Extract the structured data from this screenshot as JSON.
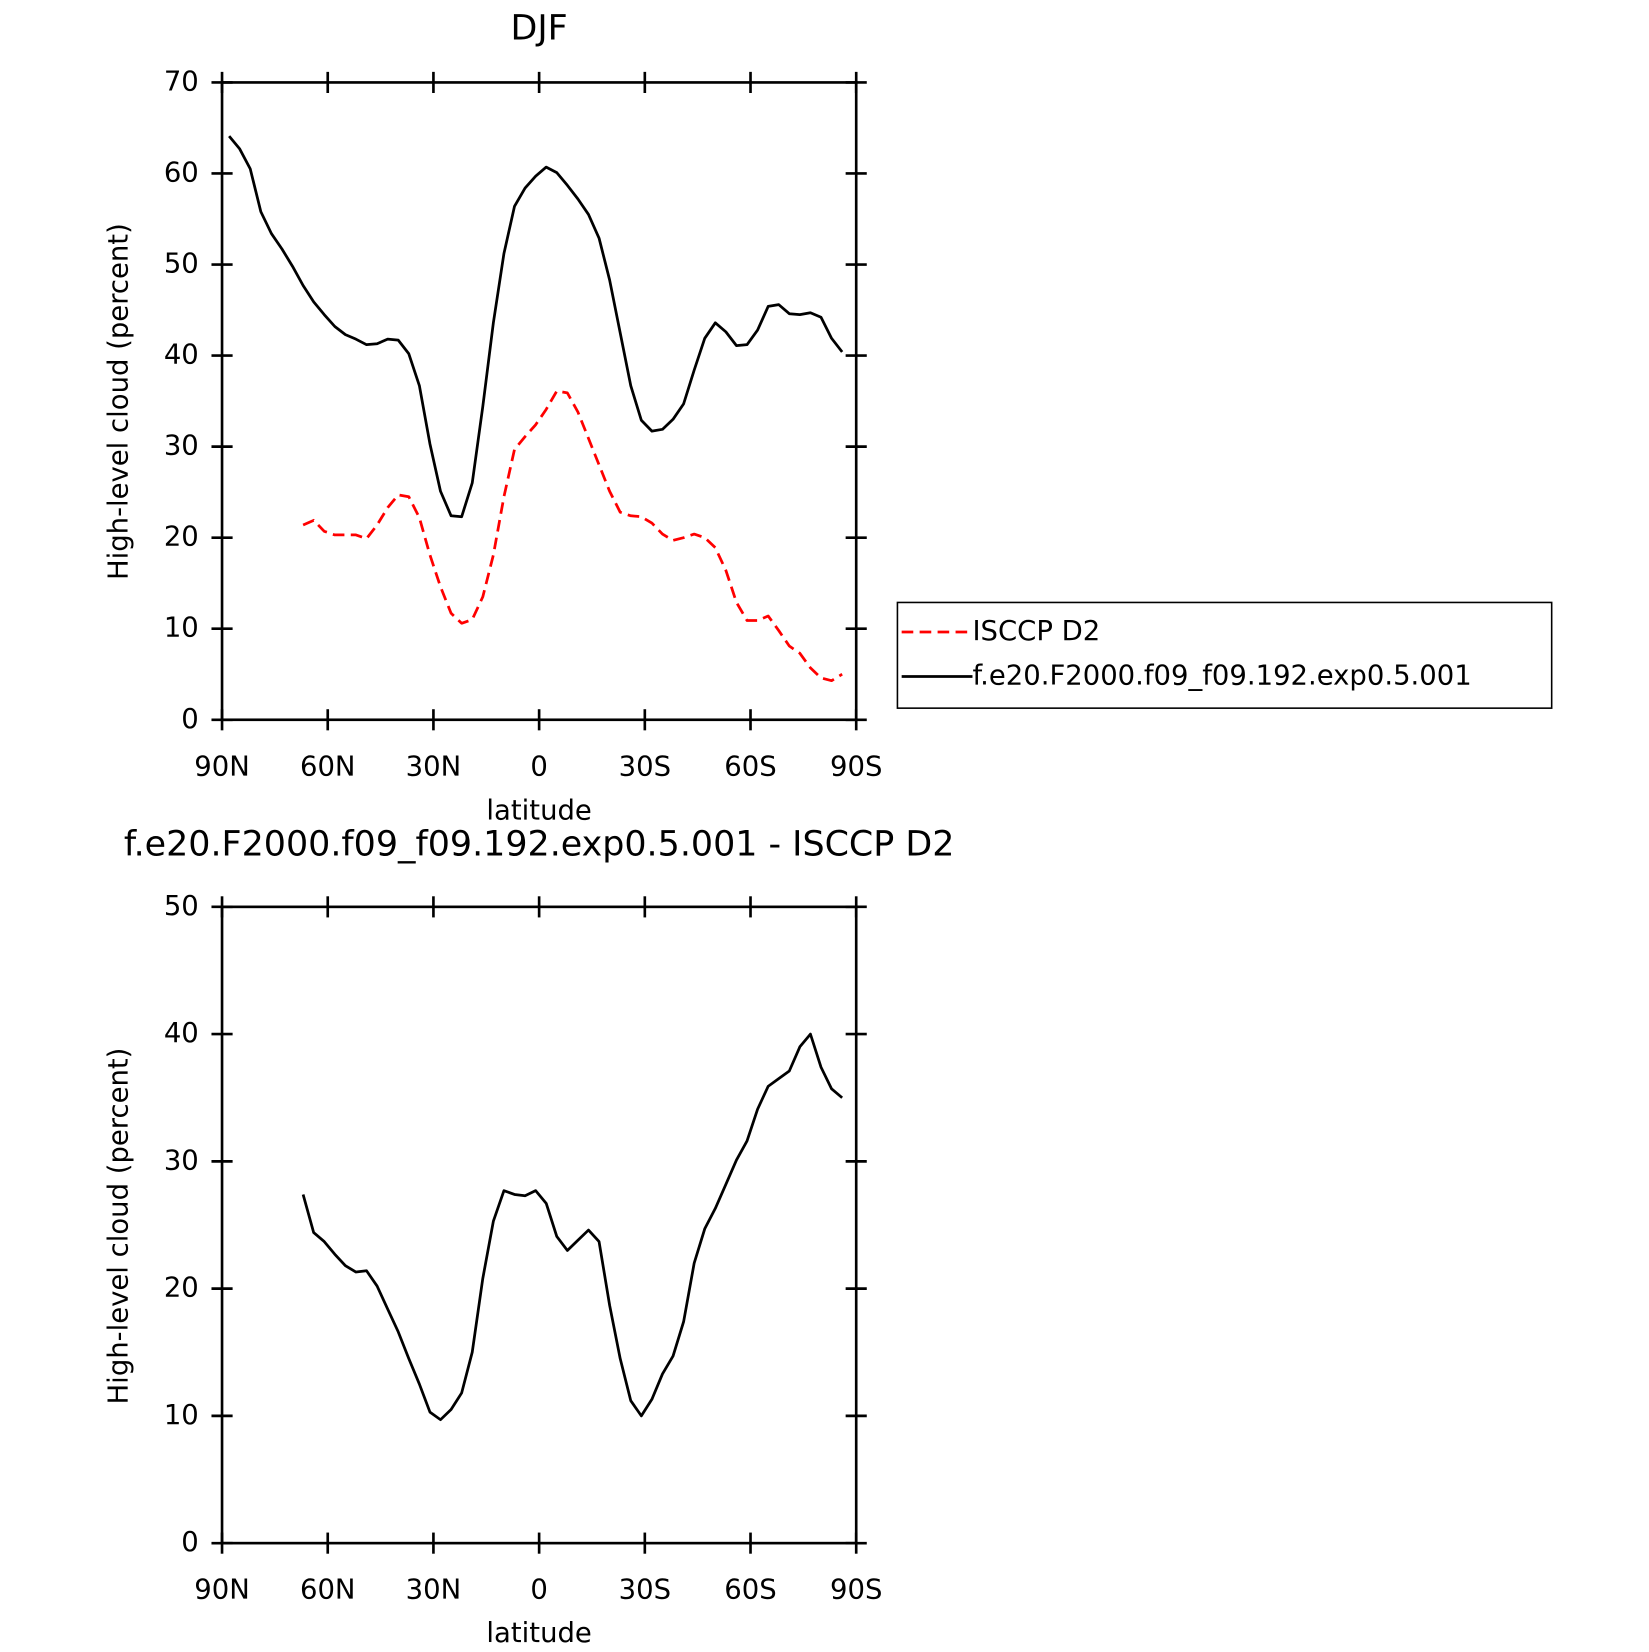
{
  "chart_data": [
    {
      "type": "line",
      "title": "DJF",
      "xlabel": "latitude",
      "ylabel": "High-level cloud (percent)",
      "x": [
        88,
        85,
        82,
        79,
        76,
        73,
        70,
        67,
        64,
        61,
        58,
        55,
        52,
        49,
        46,
        43,
        40,
        37,
        34,
        31,
        28,
        25,
        22,
        19,
        16,
        13,
        10,
        7,
        4,
        1,
        -2,
        -5,
        -8,
        -11,
        -14,
        -17,
        -20,
        -23,
        -26,
        -29,
        -32,
        -35,
        -38,
        -41,
        -44,
        -47,
        -50,
        -53,
        -56,
        -59,
        -62,
        -65,
        -68,
        -71,
        -74,
        -77,
        -80,
        -83,
        -86
      ],
      "series": [
        {
          "name": "ISCCP D2",
          "color": "#ff0000",
          "dashed": true,
          "values": [
            null,
            null,
            null,
            null,
            null,
            null,
            null,
            21.4,
            21.9,
            20.7,
            20.3,
            20.3,
            20.3,
            19.9,
            21.4,
            23.3,
            24.7,
            24.5,
            22.2,
            18.1,
            14.6,
            11.7,
            10.6,
            11.0,
            13.5,
            18.1,
            24.5,
            29.7,
            31.1,
            32.4,
            34.1,
            36.1,
            35.9,
            33.8,
            30.9,
            28.0,
            25.1,
            22.8,
            22.4,
            22.3,
            21.6,
            20.4,
            19.7,
            20.0,
            20.4,
            20.0,
            18.9,
            16.4,
            12.9,
            10.9,
            10.9,
            11.4,
            9.8,
            8.1,
            7.3,
            5.7,
            4.6,
            4.3,
            5.0
          ]
        },
        {
          "name": "f.e20.F2000.f09_f09.192.exp0.5.001",
          "color": "#000000",
          "dashed": false,
          "values": [
            64.1,
            62.7,
            60.5,
            55.8,
            53.4,
            51.7,
            49.8,
            47.7,
            45.9,
            44.5,
            43.2,
            42.3,
            41.8,
            41.2,
            41.3,
            41.8,
            41.7,
            40.2,
            36.7,
            30.3,
            25.1,
            22.4,
            22.3,
            26.0,
            34.4,
            43.6,
            51.2,
            56.4,
            58.4,
            59.7,
            60.7,
            60.1,
            58.7,
            57.2,
            55.5,
            52.9,
            48.3,
            42.5,
            36.7,
            32.9,
            31.7,
            31.9,
            33.0,
            34.7,
            38.4,
            41.9,
            43.6,
            42.6,
            41.1,
            41.2,
            42.8,
            45.4,
            45.6,
            44.6,
            44.5,
            44.7,
            44.2,
            41.9,
            40.4
          ]
        }
      ],
      "xlim": [
        90,
        -90
      ],
      "xticks": [
        {
          "value": 90,
          "label": "90N"
        },
        {
          "value": 60,
          "label": "60N"
        },
        {
          "value": 30,
          "label": "30N"
        },
        0,
        {
          "value": -30,
          "label": "30S"
        },
        {
          "value": -60,
          "label": "60S"
        },
        {
          "value": -90,
          "label": "90S"
        }
      ],
      "ylim": [
        0,
        70
      ],
      "yticks": [
        0,
        10,
        20,
        30,
        40,
        50,
        60,
        70
      ],
      "legend": "right"
    },
    {
      "type": "line",
      "title": "f.e20.F2000.f09_f09.192.exp0.5.001 - ISCCP D2",
      "xlabel": "latitude",
      "ylabel": "High-level cloud (percent)",
      "x": [
        67,
        64,
        61,
        58,
        55,
        52,
        49,
        46,
        43,
        40,
        37,
        34,
        31,
        28,
        25,
        22,
        19,
        16,
        13,
        10,
        7,
        4,
        1,
        -2,
        -5,
        -8,
        -11,
        -14,
        -17,
        -20,
        -23,
        -26,
        -29,
        -32,
        -35,
        -38,
        -41,
        -44,
        -47,
        -50,
        -53,
        -56,
        -59,
        -62,
        -65,
        -68,
        -71,
        -74,
        -77,
        -80,
        -83,
        -86
      ],
      "series": [
        {
          "color": "#000000",
          "dashed": false,
          "values": [
            27.4,
            24.4,
            23.7,
            22.7,
            21.8,
            21.3,
            21.4,
            20.2,
            18.4,
            16.6,
            14.5,
            12.5,
            10.3,
            9.7,
            10.5,
            11.8,
            15.0,
            20.8,
            25.3,
            27.7,
            27.4,
            27.3,
            27.7,
            26.7,
            24.1,
            23.0,
            23.8,
            24.6,
            23.7,
            18.7,
            14.5,
            11.2,
            10.0,
            11.3,
            13.3,
            14.7,
            17.4,
            22.0,
            24.7,
            26.3,
            28.2,
            30.1,
            31.6,
            34.1,
            35.9,
            36.5,
            37.1,
            39.0,
            40.0,
            37.4,
            35.7,
            35.0
          ]
        }
      ],
      "xlim": [
        90,
        -90
      ],
      "xticks": [
        {
          "value": 90,
          "label": "90N"
        },
        {
          "value": 60,
          "label": "60N"
        },
        {
          "value": 30,
          "label": "30N"
        },
        0,
        {
          "value": -30,
          "label": "30S"
        },
        {
          "value": -60,
          "label": "60S"
        },
        {
          "value": -90,
          "label": "90S"
        }
      ],
      "ylim": [
        0,
        50
      ],
      "yticks": [
        0,
        10,
        20,
        30,
        40,
        50
      ]
    }
  ]
}
